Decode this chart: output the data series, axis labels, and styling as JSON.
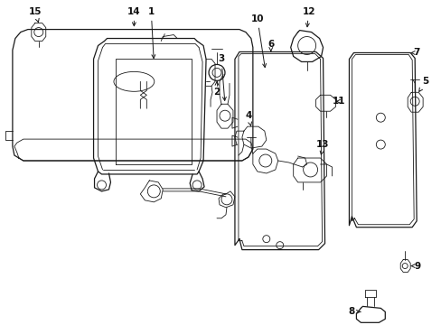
{
  "bg_color": "#ffffff",
  "line_color": "#1a1a1a",
  "text_color": "#111111",
  "fig_width": 4.89,
  "fig_height": 3.6,
  "dpi": 100
}
